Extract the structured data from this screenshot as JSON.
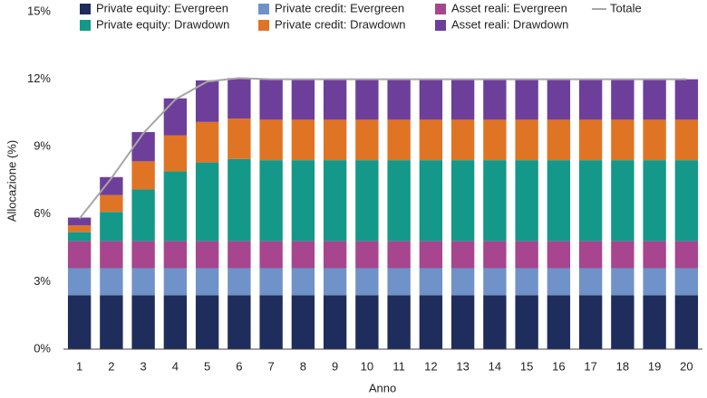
{
  "chart_data": {
    "type": "bar",
    "stacked": true,
    "y_label": "Allocazione (%)",
    "x_label": "Anno",
    "categories": [
      "1",
      "2",
      "3",
      "4",
      "5",
      "6",
      "7",
      "8",
      "9",
      "10",
      "11",
      "12",
      "13",
      "14",
      "15",
      "16",
      "17",
      "18",
      "19",
      "20"
    ],
    "ylim": [
      0,
      15
    ],
    "yticks": [
      {
        "value": 0,
        "label": "0%"
      },
      {
        "value": 3,
        "label": "3%"
      },
      {
        "value": 6,
        "label": "6%"
      },
      {
        "value": 9,
        "label": "9%"
      },
      {
        "value": 12,
        "label": "12%"
      },
      {
        "value": 15,
        "label": "15%"
      }
    ],
    "series": [
      {
        "name": "Private equity: Evergreen",
        "color": "#1f2d5c",
        "values": [
          2.4,
          2.4,
          2.4,
          2.4,
          2.4,
          2.4,
          2.4,
          2.4,
          2.4,
          2.4,
          2.4,
          2.4,
          2.4,
          2.4,
          2.4,
          2.4,
          2.4,
          2.4,
          2.4,
          2.4
        ]
      },
      {
        "name": "Private credit: Evergreen",
        "color": "#6f93c8",
        "values": [
          1.2,
          1.2,
          1.2,
          1.2,
          1.2,
          1.2,
          1.2,
          1.2,
          1.2,
          1.2,
          1.2,
          1.2,
          1.2,
          1.2,
          1.2,
          1.2,
          1.2,
          1.2,
          1.2,
          1.2
        ]
      },
      {
        "name": "Asset reali: Evergreen",
        "color": "#a8458f",
        "values": [
          1.2,
          1.2,
          1.2,
          1.2,
          1.2,
          1.2,
          1.2,
          1.2,
          1.2,
          1.2,
          1.2,
          1.2,
          1.2,
          1.2,
          1.2,
          1.2,
          1.2,
          1.2,
          1.2,
          1.2
        ]
      },
      {
        "name": "Private equity: Drawdown",
        "color": "#149889",
        "values": [
          0.4,
          1.3,
          2.3,
          3.1,
          3.5,
          3.65,
          3.6,
          3.6,
          3.6,
          3.6,
          3.6,
          3.6,
          3.6,
          3.6,
          3.6,
          3.6,
          3.6,
          3.6,
          3.6,
          3.6
        ]
      },
      {
        "name": "Private credit: Drawdown",
        "color": "#e07425",
        "values": [
          0.3,
          0.75,
          1.25,
          1.6,
          1.8,
          1.8,
          1.8,
          1.8,
          1.8,
          1.8,
          1.8,
          1.8,
          1.8,
          1.8,
          1.8,
          1.8,
          1.8,
          1.8,
          1.8,
          1.8
        ]
      },
      {
        "name": "Asset reali: Drawdown",
        "color": "#6e3f9a",
        "values": [
          0.35,
          0.8,
          1.3,
          1.65,
          1.85,
          1.8,
          1.8,
          1.8,
          1.8,
          1.8,
          1.8,
          1.8,
          1.8,
          1.8,
          1.8,
          1.8,
          1.8,
          1.8,
          1.8,
          1.8
        ]
      },
      {
        "name": "Totale",
        "type": "line",
        "color": "#a6a6a6",
        "values": [
          5.8,
          7.6,
          9.6,
          11.1,
          11.9,
          12.05,
          12,
          12,
          12,
          12,
          12,
          12,
          12,
          12,
          12,
          12,
          12,
          12,
          12,
          12
        ]
      }
    ]
  }
}
